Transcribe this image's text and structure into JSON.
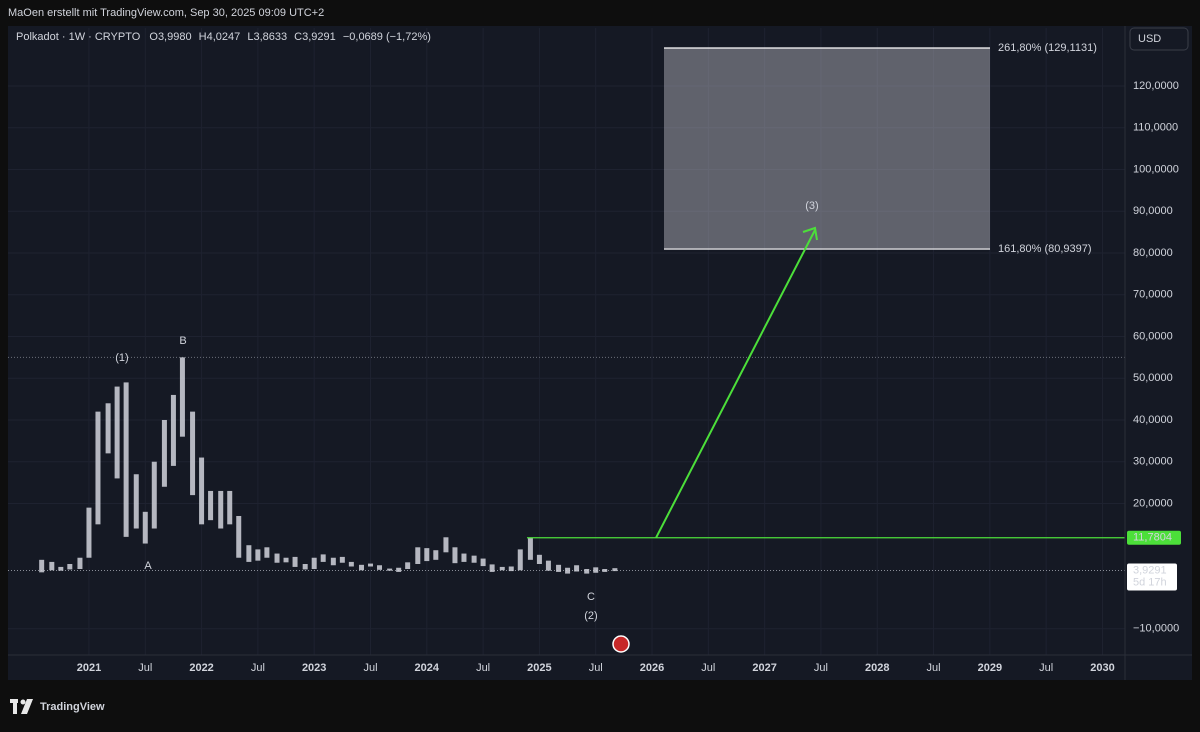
{
  "header": {
    "credit": "MaOen erstellt mit TradingView.com, Sep 30, 2025 09:09 UTC+2",
    "symbol": "Polkadot · 1W · CRYPTO",
    "open_label": "O",
    "open": "3,9980",
    "high_label": "H",
    "high": "4,0247",
    "low_label": "L",
    "low": "3,8633",
    "close_label": "C",
    "close": "3,9291",
    "change": "−0,0689 (−1,72%)",
    "currency": "USD"
  },
  "footer": {
    "brand": "TradingView"
  },
  "chart_data": {
    "type": "range",
    "x": [
      2020.58,
      2020.67,
      2020.75,
      2020.83,
      2020.92,
      2021.0,
      2021.08,
      2021.17,
      2021.25,
      2021.33,
      2021.42,
      2021.5,
      2021.58,
      2021.67,
      2021.75,
      2021.83,
      2021.92,
      2022.0,
      2022.08,
      2022.17,
      2022.25,
      2022.33,
      2022.42,
      2022.5,
      2022.58,
      2022.67,
      2022.75,
      2022.83,
      2022.92,
      2023.0,
      2023.08,
      2023.17,
      2023.25,
      2023.33,
      2023.42,
      2023.5,
      2023.58,
      2023.67,
      2023.75,
      2023.83,
      2023.92,
      2024.0,
      2024.08,
      2024.17,
      2024.25,
      2024.33,
      2024.42,
      2024.5,
      2024.58,
      2024.67,
      2024.75,
      2024.83,
      2024.92,
      2025.0,
      2025.08,
      2025.17,
      2025.25,
      2025.33,
      2025.42,
      2025.5,
      2025.58,
      2025.67
    ],
    "high": [
      6.5,
      6,
      4.8,
      5.5,
      7,
      19,
      42,
      44,
      48,
      49,
      27,
      18,
      30,
      40,
      46,
      55,
      42,
      31,
      23,
      23,
      23,
      17,
      10,
      9,
      9.5,
      8,
      7,
      7.2,
      5.5,
      7,
      7.8,
      7,
      7.2,
      6,
      5.3,
      5.6,
      5.2,
      4.4,
      4.6,
      5.9,
      9.5,
      9.3,
      8.8,
      11.9,
      9.5,
      8,
      7.5,
      6.8,
      5.4,
      4.8,
      4.9,
      9,
      11.8,
      7.7,
      6.3,
      5.3,
      4.6,
      5.2,
      4.3,
      4.7,
      4.3,
      4.5
    ],
    "low": [
      3.5,
      4,
      3.9,
      4.2,
      4.3,
      7,
      15,
      32,
      26,
      12,
      14,
      10.4,
      14,
      24,
      29,
      36,
      22,
      15,
      16,
      14,
      15,
      7,
      6,
      6.3,
      7,
      5.8,
      5.9,
      4.8,
      4.2,
      4.3,
      6,
      5.2,
      5.8,
      4.9,
      4,
      4.9,
      4.1,
      3.9,
      3.6,
      4.3,
      5.5,
      6.2,
      6.5,
      8.3,
      5.7,
      6,
      5.8,
      5,
      3.6,
      4,
      3.8,
      4,
      6.5,
      5.5,
      3.9,
      3.6,
      3.2,
      3.7,
      3.2,
      3.4,
      3.6,
      3.8
    ],
    "color": "#d1d4dc",
    "xlim": [
      2020.21,
      2030.2
    ],
    "xticks": [
      {
        "value": 2021,
        "label": "2021"
      },
      {
        "value": 2021.5,
        "label": "Jul"
      },
      {
        "value": 2022,
        "label": "2022"
      },
      {
        "value": 2022.5,
        "label": "Jul"
      },
      {
        "value": 2023,
        "label": "2023"
      },
      {
        "value": 2023.5,
        "label": "Jul"
      },
      {
        "value": 2024,
        "label": "2024"
      },
      {
        "value": 2024.5,
        "label": "Jul"
      },
      {
        "value": 2025,
        "label": "2025"
      },
      {
        "value": 2025.5,
        "label": "Jul"
      },
      {
        "value": 2026,
        "label": "2026"
      },
      {
        "value": 2026.5,
        "label": "Jul"
      },
      {
        "value": 2027,
        "label": "2027"
      },
      {
        "value": 2027.5,
        "label": "Jul"
      },
      {
        "value": 2028,
        "label": "2028"
      },
      {
        "value": 2028.5,
        "label": "Jul"
      },
      {
        "value": 2029,
        "label": "2029"
      },
      {
        "value": 2029.5,
        "label": "Jul"
      },
      {
        "value": 2030,
        "label": "2030"
      }
    ],
    "ylim": [
      -16.3,
      133.9
    ],
    "yticks": [
      {
        "value": 120,
        "label": "120,0000"
      },
      {
        "value": 110,
        "label": "110,0000"
      },
      {
        "value": 100,
        "label": "100,0000"
      },
      {
        "value": 90,
        "label": "90,0000"
      },
      {
        "value": 80,
        "label": "80,0000"
      },
      {
        "value": 70,
        "label": "70,0000"
      },
      {
        "value": 60,
        "label": "60,0000"
      },
      {
        "value": 50,
        "label": "50,0000"
      },
      {
        "value": 40,
        "label": "40,0000"
      },
      {
        "value": 30,
        "label": "30,0000"
      },
      {
        "value": 20,
        "label": "20,0000"
      },
      {
        "value": -10,
        "label": "−10,0000"
      }
    ],
    "grid": true,
    "fib_levels": [
      {
        "value": 129.1131,
        "label": "261,80% (129,1131)"
      },
      {
        "value": 80.9397,
        "label": "161,80% (80,9397)"
      }
    ],
    "breakout": {
      "value": 11.7804,
      "label": "11,7804",
      "color": "#4cdf3a"
    },
    "last_price": {
      "value": 3.9291,
      "label": "3,9291",
      "countdown": "5d 17h"
    },
    "waves": {
      "w1": "(1)",
      "a": "A",
      "b": "B",
      "c": "C",
      "w2": "(2)",
      "w3": "(3)"
    }
  }
}
